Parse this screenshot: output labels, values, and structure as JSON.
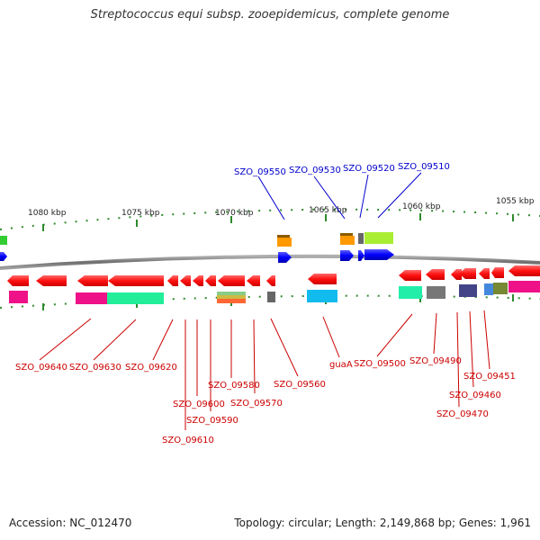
{
  "title": "Streptococcus equi subsp. zooepidemicus, complete genome",
  "footer": {
    "accession": "Accession: NC_012470",
    "summary": "Topology: circular; Length: 2,149,868 bp; Genes: 1,961"
  },
  "ruler": {
    "ticks": [
      "1080 kbp",
      "1075 kbp",
      "1070 kbp",
      "1065 kbp",
      "1060 kbp",
      "1055 kbp"
    ]
  },
  "genes_top": [
    "SZO_09550",
    "SZO_09530",
    "SZO_09520",
    "SZO_09510"
  ],
  "genes_bottom": [
    "SZO_09640",
    "SZO_09630",
    "SZO_09620",
    "SZO_09610",
    "SZO_09600",
    "SZO_09590",
    "SZO_09580",
    "SZO_09570",
    "SZO_09560",
    "guaA",
    "SZO_09500",
    "SZO_09490",
    "SZO_09470",
    "SZO_09460",
    "SZO_09451"
  ],
  "colors": {
    "forward_strand": "#0000ff",
    "reverse_strand": "#ff0000",
    "top_label": "#0000cc",
    "bottom_label": "#cc0000",
    "tick": "#2e8b2e",
    "backbone": "#8c8c8c"
  }
}
